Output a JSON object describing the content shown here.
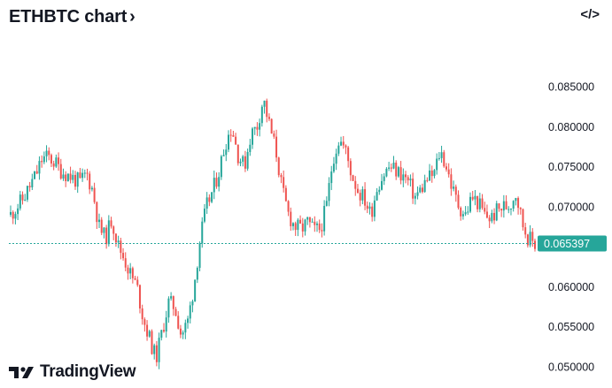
{
  "header": {
    "title": "ETHBTC chart"
  },
  "brand": {
    "name": "TradingView"
  },
  "chart_data": {
    "type": "candlestick",
    "symbol": "ETHBTC",
    "ylim": [
      0.0495,
      0.0875
    ],
    "y_ticks": [
      "0.085000",
      "0.080000",
      "0.075000",
      "0.070000",
      "0.065000",
      "0.060000",
      "0.055000",
      "0.050000"
    ],
    "y_tick_values": [
      0.085,
      0.08,
      0.075,
      0.07,
      0.065,
      0.06,
      0.055,
      0.05
    ],
    "last_price": 0.065397,
    "last_price_label": "0.065397",
    "axis_side": "right",
    "grid": false,
    "colors": {
      "up": "#26a69a",
      "down": "#ef5350",
      "last_line": "#26a69a",
      "axis_text": "#131722"
    },
    "closes": [
      0.069,
      0.07,
      0.071,
      0.0725,
      0.074,
      0.076,
      0.0762,
      0.0755,
      0.0745,
      0.074,
      0.0735,
      0.073,
      0.0742,
      0.072,
      0.0675,
      0.066,
      0.0685,
      0.0652,
      0.0635,
      0.0615,
      0.06,
      0.056,
      0.0535,
      0.051,
      0.0545,
      0.058,
      0.0575,
      0.054,
      0.0555,
      0.06,
      0.066,
      0.07,
      0.072,
      0.0745,
      0.078,
      0.08,
      0.0765,
      0.075,
      0.079,
      0.08,
      0.0835,
      0.08,
      0.077,
      0.072,
      0.069,
      0.0675,
      0.0672,
      0.068,
      0.067,
      0.0672,
      0.07,
      0.076,
      0.0785,
      0.077,
      0.074,
      0.072,
      0.071,
      0.069,
      0.0725,
      0.074,
      0.075,
      0.0745,
      0.074,
      0.073,
      0.0712,
      0.0722,
      0.0735,
      0.074,
      0.077,
      0.075,
      0.072,
      0.07,
      0.069,
      0.0712,
      0.0705,
      0.069,
      0.0685,
      0.0695,
      0.07,
      0.0702,
      0.0718,
      0.068,
      0.066,
      0.0654
    ]
  }
}
